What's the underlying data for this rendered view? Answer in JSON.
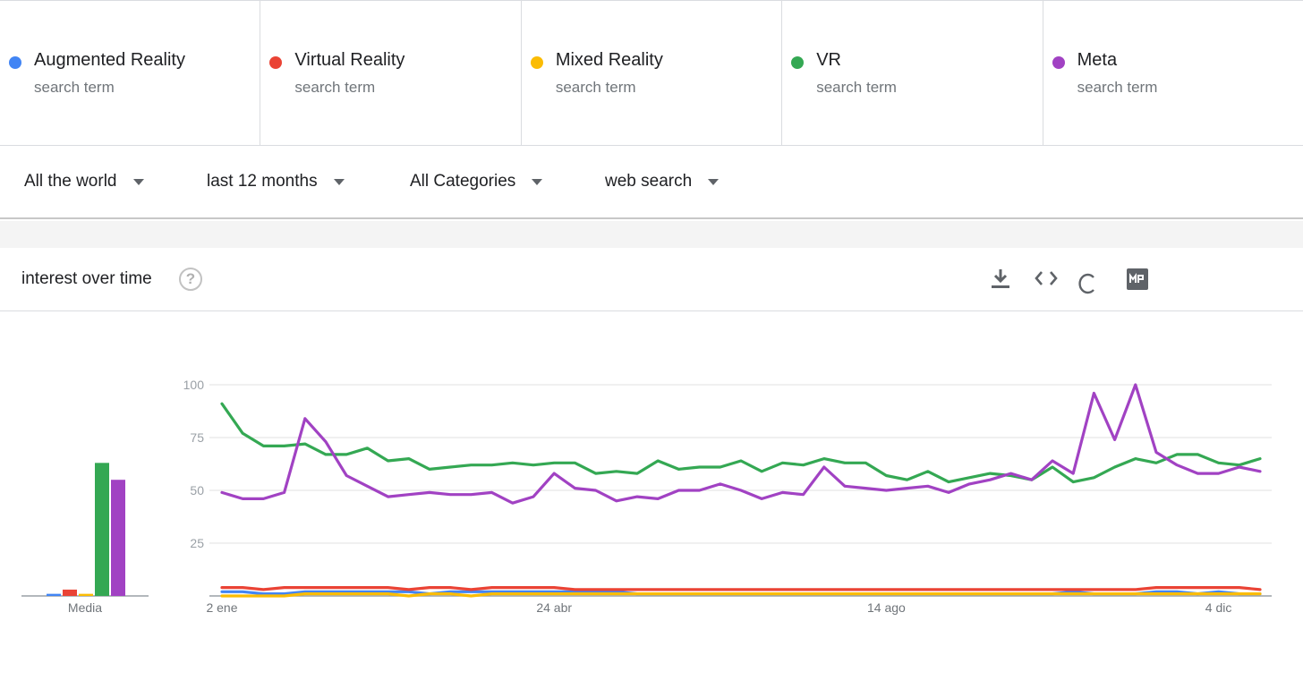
{
  "terms": [
    {
      "label": "Augmented Reality",
      "sub": "search term",
      "color": "#4285f4"
    },
    {
      "label": "Virtual Reality",
      "sub": "search term",
      "color": "#ea4335"
    },
    {
      "label": "Mixed Reality",
      "sub": "search term",
      "color": "#fbbc04"
    },
    {
      "label": "VR",
      "sub": "search term",
      "color": "#34a853"
    },
    {
      "label": "Meta",
      "sub": "search term",
      "color": "#a142c3"
    }
  ],
  "filters": {
    "region": "All the world",
    "period": "last 12 months",
    "category": "All Categories",
    "property": "web search"
  },
  "card": {
    "title": "interest over time",
    "help_icon": "question-circle-icon",
    "tools": [
      "download-icon",
      "embed-code-icon",
      "share-icon",
      "gallery-icon"
    ]
  },
  "chart_data": {
    "type": "line",
    "ylim": [
      0,
      100
    ],
    "yticks": [
      25,
      50,
      75,
      100
    ],
    "xticks": [
      {
        "index": 0,
        "label": "2 ene"
      },
      {
        "index": 16,
        "label": "24 abr"
      },
      {
        "index": 32,
        "label": "14 ago"
      },
      {
        "index": 48,
        "label": "4 dic"
      }
    ],
    "averages_label": "Media",
    "series": [
      {
        "name": "Augmented Reality",
        "color": "#4285f4",
        "average": 1,
        "values": [
          2,
          2,
          1,
          1,
          2,
          2,
          2,
          2,
          2,
          2,
          1,
          2,
          2,
          2,
          2,
          2,
          2,
          2,
          2,
          2,
          1,
          1,
          1,
          1,
          1,
          1,
          1,
          1,
          1,
          1,
          1,
          1,
          1,
          1,
          1,
          1,
          1,
          1,
          1,
          1,
          1,
          2,
          1,
          1,
          1,
          2,
          2,
          1,
          2,
          1,
          1
        ]
      },
      {
        "name": "Virtual Reality",
        "color": "#ea4335",
        "average": 3,
        "values": [
          4,
          4,
          3,
          4,
          4,
          4,
          4,
          4,
          4,
          3,
          4,
          4,
          3,
          4,
          4,
          4,
          4,
          3,
          3,
          3,
          3,
          3,
          3,
          3,
          3,
          3,
          3,
          3,
          3,
          3,
          3,
          3,
          3,
          3,
          3,
          3,
          3,
          3,
          3,
          3,
          3,
          3,
          3,
          3,
          3,
          4,
          4,
          4,
          4,
          4,
          3
        ]
      },
      {
        "name": "Mixed Reality",
        "color": "#fbbc04",
        "average": 1,
        "values": [
          0,
          0,
          0,
          0,
          1,
          1,
          1,
          1,
          1,
          0,
          1,
          1,
          0,
          1,
          1,
          1,
          1,
          1,
          1,
          1,
          1,
          1,
          1,
          1,
          1,
          1,
          1,
          1,
          1,
          1,
          1,
          1,
          1,
          1,
          1,
          1,
          1,
          1,
          1,
          1,
          1,
          1,
          1,
          1,
          1,
          1,
          1,
          1,
          1,
          1,
          1
        ]
      },
      {
        "name": "VR",
        "color": "#34a853",
        "average": 63,
        "values": [
          91,
          77,
          71,
          71,
          72,
          67,
          67,
          70,
          64,
          65,
          60,
          61,
          62,
          62,
          63,
          62,
          63,
          63,
          58,
          59,
          58,
          64,
          60,
          61,
          61,
          64,
          59,
          63,
          62,
          65,
          63,
          63,
          57,
          55,
          59,
          54,
          56,
          58,
          57,
          55,
          61,
          54,
          56,
          61,
          65,
          63,
          67,
          67,
          63,
          62,
          65
        ]
      },
      {
        "name": "Meta",
        "color": "#a142c3",
        "average": 55,
        "values": [
          49,
          46,
          46,
          49,
          84,
          73,
          57,
          52,
          47,
          48,
          49,
          48,
          48,
          49,
          44,
          47,
          58,
          51,
          50,
          45,
          47,
          46,
          50,
          50,
          53,
          50,
          46,
          49,
          48,
          61,
          52,
          51,
          50,
          51,
          52,
          49,
          53,
          55,
          58,
          55,
          64,
          58,
          96,
          74,
          100,
          68,
          62,
          58,
          58,
          61,
          59
        ]
      }
    ]
  }
}
